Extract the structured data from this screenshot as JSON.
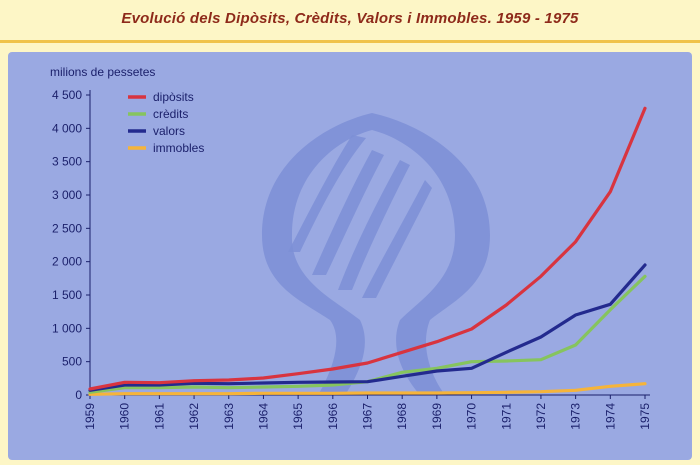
{
  "chart_data": {
    "type": "line",
    "title": "Evolució dels Dipòsits, Crèdits, Valors i Immobles. 1959 - 1975",
    "ylabel": "milions de pessetes",
    "xlabel": "",
    "ylim": [
      0,
      4500
    ],
    "yticks": [
      0,
      500,
      1000,
      1500,
      2000,
      2500,
      3000,
      3500,
      4000,
      4500
    ],
    "ytick_labels": [
      "0",
      "500",
      "1 000",
      "1 500",
      "2 000",
      "2 500",
      "3 000",
      "3 500",
      "4 000",
      "4 500"
    ],
    "x": [
      "1959",
      "1960",
      "1961",
      "1962",
      "1963",
      "1964",
      "1965",
      "1966",
      "1967",
      "1968",
      "1969",
      "1970",
      "1971",
      "1972",
      "1973",
      "1974",
      "1975"
    ],
    "grid": false,
    "legend_position": "top-left",
    "series": [
      {
        "name": "dipòsits",
        "color": "#d8343f",
        "values": [
          90,
          190,
          185,
          215,
          225,
          255,
          320,
          390,
          480,
          640,
          800,
          990,
          1350,
          1780,
          2300,
          3050,
          4300
        ]
      },
      {
        "name": "crèdits",
        "color": "#86c45e",
        "values": [
          40,
          110,
          110,
          120,
          110,
          120,
          130,
          150,
          200,
          340,
          400,
          500,
          510,
          530,
          750,
          1280,
          1780
        ]
      },
      {
        "name": "valors",
        "color": "#232a8e",
        "values": [
          70,
          150,
          150,
          175,
          170,
          180,
          190,
          195,
          200,
          280,
          360,
          400,
          640,
          870,
          1200,
          1360,
          1950
        ]
      },
      {
        "name": "immobles",
        "color": "#f6b43a",
        "values": [
          10,
          20,
          20,
          20,
          20,
          25,
          25,
          25,
          30,
          30,
          30,
          35,
          40,
          50,
          70,
          130,
          170
        ]
      }
    ]
  }
}
